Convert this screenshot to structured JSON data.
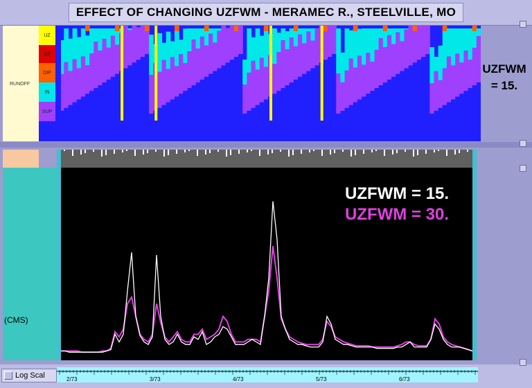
{
  "title": "EFFECT OF CHANGING UZFWM - MERAMEC R., STEELVILLE, MO",
  "top_panel": {
    "legend_label": "RUNOFF",
    "swatches": [
      {
        "label": "UZ",
        "color": "#ffff00"
      },
      {
        "label": "UZ",
        "color": "#e00000"
      },
      {
        "label": "DIP",
        "color": "#ff6000"
      },
      {
        "label": "IN",
        "color": "#00e8e8"
      },
      {
        "label": "SUP",
        "color": "#a040ff"
      },
      {
        "label": "",
        "color": "#2020ff"
      }
    ],
    "side_label_line1": "UZFWM",
    "side_label_line2": "= 15."
  },
  "hydrograph": {
    "axis_unit": "(CMS)",
    "legend_white": "UZFWM = 15.",
    "legend_magenta": "UZFWM = 30.",
    "colors": {
      "series1": "#ffffff",
      "series2": "#e040e0"
    }
  },
  "bottom": {
    "logscale_label": "Log Scal",
    "timeline_labels": [
      "2/73",
      "3/73",
      "4/73",
      "5/73",
      "6/73"
    ]
  },
  "chart_data": {
    "type": "line",
    "series": [
      {
        "name": "UZFWM = 15.",
        "values": [
          3,
          3,
          2,
          2,
          2,
          2,
          2,
          2,
          2,
          2,
          2,
          3,
          4,
          16,
          10,
          16,
          50,
          80,
          30,
          15,
          10,
          8,
          14,
          78,
          30,
          12,
          8,
          10,
          16,
          10,
          8,
          8,
          14,
          12,
          18,
          8,
          10,
          14,
          16,
          22,
          20,
          14,
          8,
          8,
          8,
          10,
          12,
          10,
          8,
          30,
          60,
          120,
          90,
          30,
          20,
          12,
          10,
          8,
          8,
          7,
          6,
          6,
          6,
          10,
          30,
          24,
          12,
          10,
          8,
          8,
          7,
          6,
          6,
          6,
          6,
          6,
          5,
          5,
          5,
          5,
          5,
          6,
          6,
          8,
          10,
          6,
          6,
          6,
          6,
          12,
          24,
          20,
          12,
          8,
          6,
          6,
          6,
          5,
          4,
          3
        ]
      },
      {
        "name": "UZFWM = 30.",
        "values": [
          3,
          3,
          3,
          3,
          3,
          2,
          2,
          2,
          2,
          2,
          3,
          3,
          5,
          18,
          14,
          20,
          40,
          45,
          30,
          16,
          12,
          10,
          16,
          40,
          25,
          14,
          10,
          14,
          18,
          12,
          10,
          10,
          16,
          16,
          20,
          12,
          14,
          16,
          20,
          30,
          26,
          16,
          10,
          10,
          10,
          12,
          12,
          12,
          10,
          30,
          50,
          85,
          60,
          28,
          20,
          14,
          12,
          10,
          9,
          8,
          8,
          8,
          8,
          12,
          26,
          22,
          14,
          12,
          10,
          9,
          8,
          7,
          7,
          7,
          7,
          6,
          6,
          6,
          6,
          6,
          6,
          7,
          8,
          10,
          10,
          8,
          7,
          7,
          7,
          12,
          28,
          24,
          14,
          10,
          8,
          7,
          6,
          5,
          4,
          3
        ]
      }
    ],
    "ylabel": "(CMS)"
  }
}
